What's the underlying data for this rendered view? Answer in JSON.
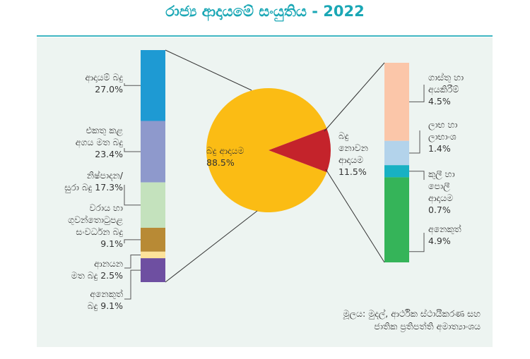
{
  "title": "රාජ්‍ය ආදායමේ සංයුතිය - 2022",
  "source": "මූලය: මුදල්, ආර්ථික ස්ථායීකරණ සහ\nජාතික ප්‍රතිපත්ති අමාත්‍යාංශය",
  "chart_data": [
    {
      "type": "pie",
      "slices": [
        {
          "label": "බදු ආදායම\n88.5%",
          "value": 88.5,
          "color": "#fbbc14"
        },
        {
          "label": "බදු\nනොවන\nආදායම\n11.5%",
          "value": 11.5,
          "color": "#c4232b"
        }
      ]
    },
    {
      "type": "bar",
      "stacked": true,
      "segments": [
        {
          "label": "ආදායම් බදු\n27.0%",
          "value": 27.0,
          "color": "#1e9ad3"
        },
        {
          "label": "එකතු කළ\nඅගය මත බදු\n23.4%",
          "value": 23.4,
          "color": "#8e99cc"
        },
        {
          "label": "නිෂ්පාදන/\nසුරා බදු 17.3%",
          "value": 17.3,
          "color": "#c4e2bd"
        },
        {
          "label": "වරාය හා\nගුවන්තොටුපළ\nසංවර්ධන බදු\n9.1%",
          "value": 9.1,
          "color": "#b88a35"
        },
        {
          "label": "ආනයන\nමත බදු 2.5%",
          "value": 2.5,
          "color": "#fde39a"
        },
        {
          "label": "අනෙකුත්\nබදු 9.1%",
          "value": 9.1,
          "color": "#6e4fa1"
        }
      ]
    },
    {
      "type": "bar",
      "stacked": true,
      "segments": [
        {
          "label": "ගාස්තු හා\nඅයකිරීම්\n4.5%",
          "value": 4.5,
          "color": "#fbc6a9"
        },
        {
          "label": "ලාභ හා\nලාභාංශ\n1.4%",
          "value": 1.4,
          "color": "#b3d3eb"
        },
        {
          "label": "කුලී හා\nපොලී\nආදායම\n0.7%",
          "value": 0.7,
          "color": "#18b1c3"
        },
        {
          "label": "අනෙකුත්\n4.9%",
          "value": 4.9,
          "color": "#35b459"
        }
      ]
    }
  ]
}
